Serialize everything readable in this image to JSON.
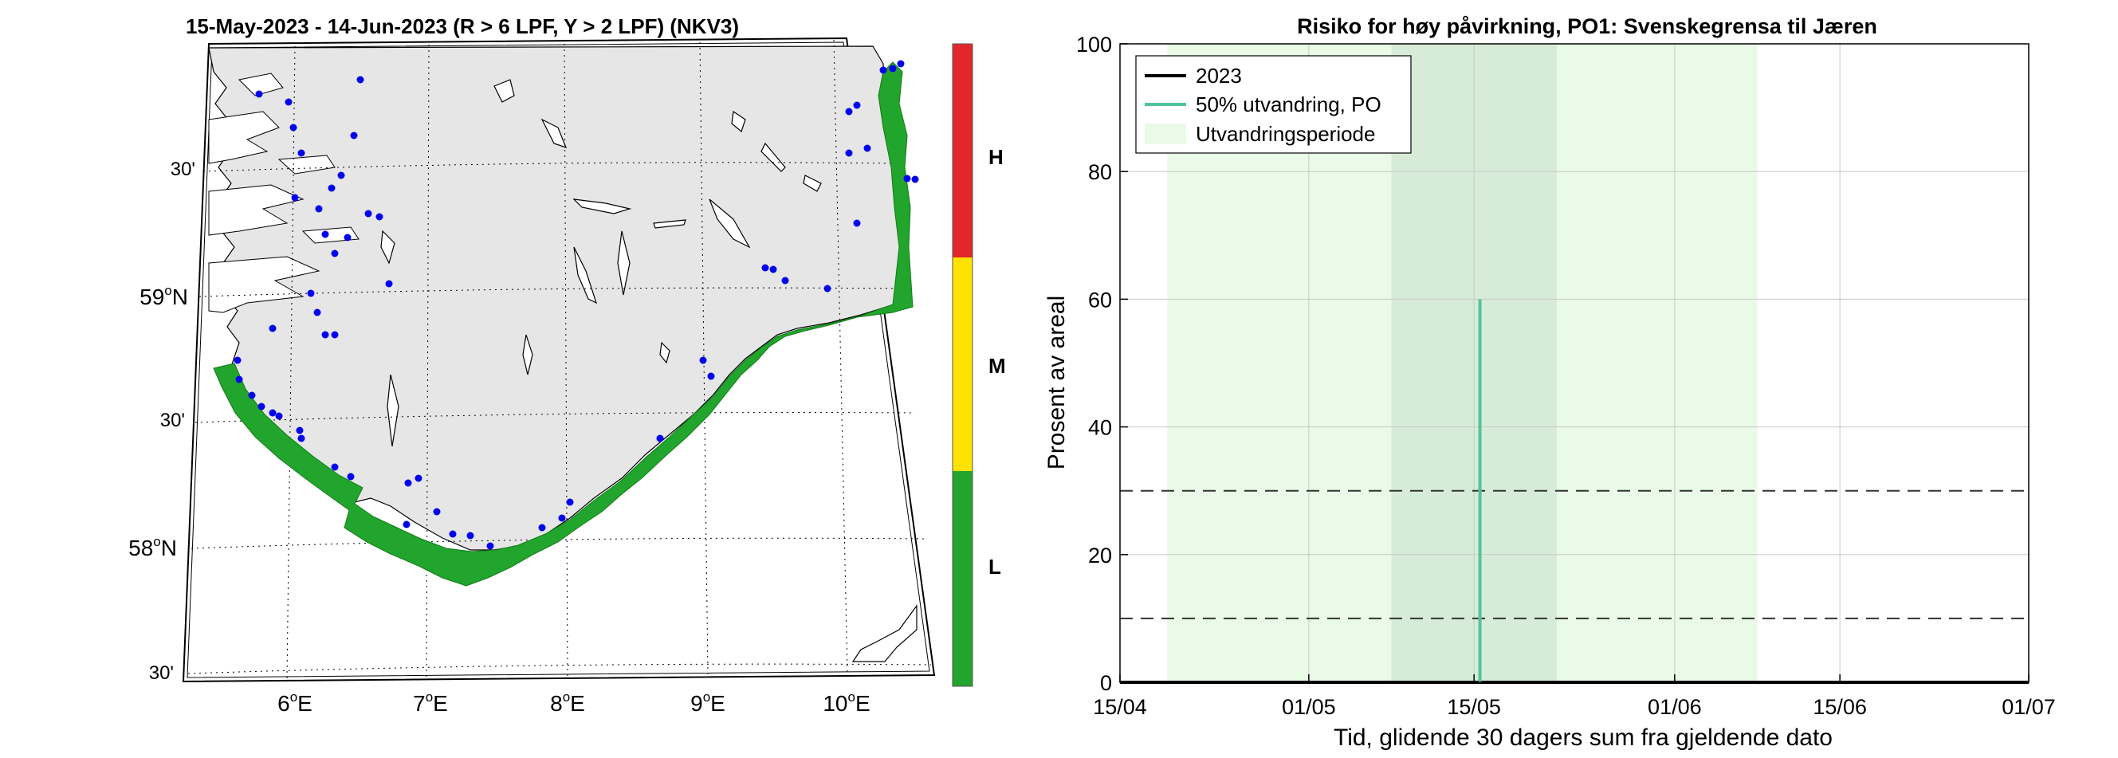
{
  "map": {
    "title": "15-May-2023  - 14-Jun-2023  (R > 6 LPF, Y > 2 LPF) (NKV3)",
    "lat_labels": [
      {
        "deg": "",
        "suffix": "30'",
        "lat": 59.5
      },
      {
        "deg": "59",
        "suffix": "N",
        "lat": 59.0
      },
      {
        "deg": "",
        "suffix": "30'",
        "lat": 58.5
      },
      {
        "deg": "58",
        "suffix": "N",
        "lat": 58.0
      },
      {
        "deg": "",
        "suffix": "30'",
        "lat": 57.5
      }
    ],
    "lon_labels": [
      {
        "deg": "6",
        "suffix": "E",
        "lon": 6
      },
      {
        "deg": "7",
        "suffix": "E",
        "lon": 7
      },
      {
        "deg": "8",
        "suffix": "E",
        "lon": 8
      },
      {
        "deg": "9",
        "suffix": "E",
        "lon": 9
      },
      {
        "deg": "10",
        "suffix": "E",
        "lon": 10
      }
    ],
    "degree_symbol": "o",
    "colorbar": {
      "labels": [
        "H",
        "M",
        "L"
      ],
      "colors": {
        "H": "#e3262b",
        "M": "#ffe300",
        "L": "#22a52c"
      }
    },
    "colors": {
      "land": "#e6e6e6",
      "coast_zone": "#22a52c",
      "site_marker": "#0000ee"
    }
  },
  "chart_data": {
    "type": "line",
    "title": "Risiko for høy påvirkning, PO1: Svenskegrensa til Jæren",
    "xlabel": "Tid, glidende 30 dagers sum fra gjeldende dato",
    "ylabel": "Prosent av areal",
    "x_ticks": [
      "15/04",
      "01/05",
      "15/05",
      "01/06",
      "15/06",
      "01/07"
    ],
    "x_tick_days": [
      0,
      16,
      30,
      47,
      61,
      77
    ],
    "ylim": [
      0,
      100
    ],
    "y_ticks": [
      0,
      20,
      40,
      60,
      80,
      100
    ],
    "grid": true,
    "legend": {
      "placement": "top-left",
      "entries": [
        "2023",
        "50% utvandring, PO",
        "Utvandringsperiode"
      ]
    },
    "series": [
      {
        "name": "2023",
        "color": "#000000",
        "x": [
          "15/04",
          "01/07"
        ],
        "values": [
          0,
          0
        ]
      }
    ],
    "vertical_line": {
      "name": "50% utvandring, PO",
      "x": "15/05",
      "day": 30.5,
      "y_range": [
        0,
        60
      ],
      "color": "#52c49c"
    },
    "shaded_periods": [
      {
        "name": "Utvandringsperiode",
        "start_day": 4,
        "end_day": 54,
        "color": "#e9fae7"
      },
      {
        "name": "",
        "start_day": 23,
        "end_day": 37,
        "color": "#d7ecd8"
      }
    ],
    "threshold_lines": [
      10,
      30
    ]
  }
}
